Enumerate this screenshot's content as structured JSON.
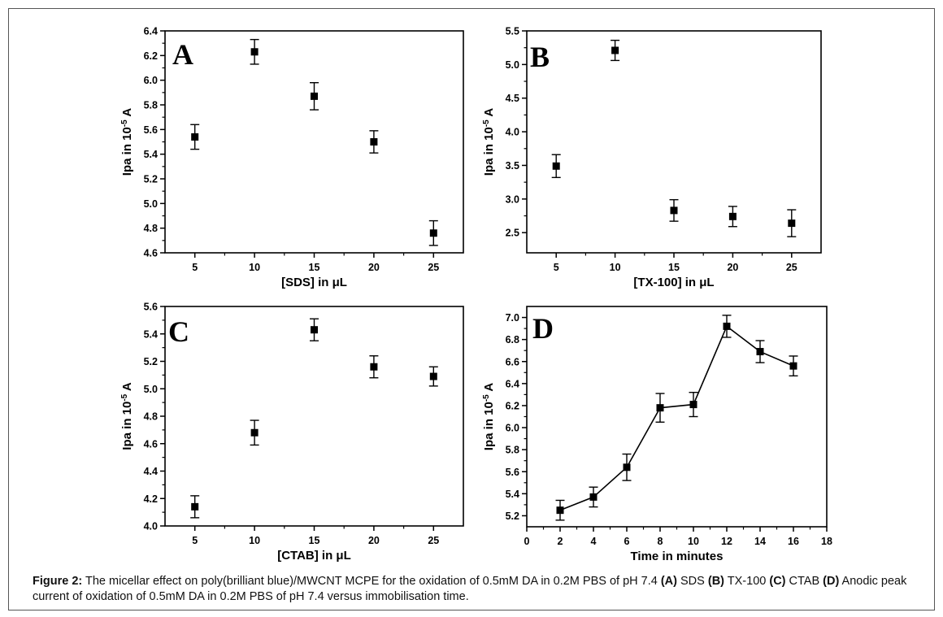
{
  "chart_data": [
    {
      "type": "scatter",
      "panel_label": "A",
      "xlabel": "[SDS] in μL",
      "ylabel_base": "Ipa in 10",
      "ylabel_exp": "-5",
      "ylabel_unit": " A",
      "xlim": [
        2.5,
        27.5
      ],
      "ylim": [
        4.6,
        6.4
      ],
      "xticks": [
        5,
        10,
        15,
        20,
        25
      ],
      "xtick_labels": [
        "5",
        "10",
        "15",
        "20",
        "25"
      ],
      "yticks": [
        4.6,
        4.8,
        5.0,
        5.2,
        5.4,
        5.6,
        5.8,
        6.0,
        6.2,
        6.4
      ],
      "ytick_labels": [
        "4.6",
        "4.8",
        "5.0",
        "5.2",
        "5.4",
        "5.6",
        "5.8",
        "6.0",
        "6.2",
        "6.4"
      ],
      "connect": false,
      "points": [
        {
          "x": 5,
          "y": 5.54,
          "err": 0.1
        },
        {
          "x": 10,
          "y": 6.23,
          "err": 0.1
        },
        {
          "x": 15,
          "y": 5.87,
          "err": 0.11
        },
        {
          "x": 20,
          "y": 5.5,
          "err": 0.09
        },
        {
          "x": 25,
          "y": 4.76,
          "err": 0.1
        }
      ]
    },
    {
      "type": "scatter",
      "panel_label": "B",
      "xlabel": "[TX-100] in μL",
      "ylabel_base": "Ipa in 10",
      "ylabel_exp": "-5",
      "ylabel_unit": " A",
      "xlim": [
        2.5,
        27.5
      ],
      "ylim": [
        2.2,
        5.5
      ],
      "xticks": [
        5,
        10,
        15,
        20,
        25
      ],
      "xtick_labels": [
        "5",
        "10",
        "15",
        "20",
        "25"
      ],
      "yticks": [
        2.5,
        3.0,
        3.5,
        4.0,
        4.5,
        5.0,
        5.5
      ],
      "ytick_labels": [
        "2.5",
        "3.0",
        "3.5",
        "4.0",
        "4.5",
        "5.0",
        "5.5"
      ],
      "connect": false,
      "points": [
        {
          "x": 5,
          "y": 3.49,
          "err": 0.17
        },
        {
          "x": 10,
          "y": 5.21,
          "err": 0.15
        },
        {
          "x": 15,
          "y": 2.83,
          "err": 0.16
        },
        {
          "x": 20,
          "y": 2.74,
          "err": 0.15
        },
        {
          "x": 25,
          "y": 2.64,
          "err": 0.2
        }
      ]
    },
    {
      "type": "scatter",
      "panel_label": "C",
      "xlabel": "[CTAB] in μL",
      "ylabel_base": "Ipa in 10",
      "ylabel_exp": "-5",
      "ylabel_unit": " A",
      "xlim": [
        2.5,
        27.5
      ],
      "ylim": [
        4.0,
        5.6
      ],
      "xticks": [
        5,
        10,
        15,
        20,
        25
      ],
      "xtick_labels": [
        "5",
        "10",
        "15",
        "20",
        "25"
      ],
      "yticks": [
        4.0,
        4.2,
        4.4,
        4.6,
        4.8,
        5.0,
        5.2,
        5.4,
        5.6
      ],
      "ytick_labels": [
        "4.0",
        "4.2",
        "4.4",
        "4.6",
        "4.8",
        "5.0",
        "5.2",
        "5.4",
        "5.6"
      ],
      "connect": false,
      "points": [
        {
          "x": 5,
          "y": 4.14,
          "err": 0.08
        },
        {
          "x": 10,
          "y": 4.68,
          "err": 0.09
        },
        {
          "x": 15,
          "y": 5.43,
          "err": 0.08
        },
        {
          "x": 20,
          "y": 5.16,
          "err": 0.08
        },
        {
          "x": 25,
          "y": 5.09,
          "err": 0.07
        }
      ]
    },
    {
      "type": "line",
      "panel_label": "D",
      "xlabel": "Time in minutes",
      "ylabel_base": "Ipa in 10",
      "ylabel_exp": "-5",
      "ylabel_unit": " A",
      "xlim": [
        0,
        18
      ],
      "ylim": [
        5.1,
        7.1
      ],
      "xticks": [
        0,
        2,
        4,
        6,
        8,
        10,
        12,
        14,
        16,
        18
      ],
      "xtick_labels": [
        "0",
        "2",
        "4",
        "6",
        "8",
        "10",
        "12",
        "14",
        "16",
        "18"
      ],
      "yticks": [
        5.2,
        5.4,
        5.6,
        5.8,
        6.0,
        6.2,
        6.4,
        6.6,
        6.8,
        7.0
      ],
      "ytick_labels": [
        "5.2",
        "5.4",
        "5.6",
        "5.8",
        "6.0",
        "6.2",
        "6.4",
        "6.6",
        "6.8",
        "7.0"
      ],
      "connect": true,
      "points": [
        {
          "x": 2,
          "y": 5.25,
          "err": 0.09
        },
        {
          "x": 4,
          "y": 5.37,
          "err": 0.09
        },
        {
          "x": 6,
          "y": 5.64,
          "err": 0.12
        },
        {
          "x": 8,
          "y": 6.18,
          "err": 0.13
        },
        {
          "x": 10,
          "y": 6.21,
          "err": 0.11
        },
        {
          "x": 12,
          "y": 6.92,
          "err": 0.1
        },
        {
          "x": 14,
          "y": 6.69,
          "err": 0.1
        },
        {
          "x": 16,
          "y": 6.56,
          "err": 0.09
        }
      ]
    }
  ],
  "caption": {
    "figure_label": "Figure 2:",
    "text_1": " The micellar effect on poly(brilliant blue)/MWCNT MCPE for the oxidation of 0.5mM DA in 0.2M PBS of pH 7.4 ",
    "label_a": "(A)",
    "text_a": " SDS ",
    "label_b": "(B)",
    "text_b": " TX-100 ",
    "label_c": "(C)",
    "text_c": " CTAB ",
    "label_d": "(D)",
    "text_d": " Anodic peak current of oxidation of 0.5mM DA in 0.2M PBS of pH 7.4 versus immobilisation time."
  }
}
